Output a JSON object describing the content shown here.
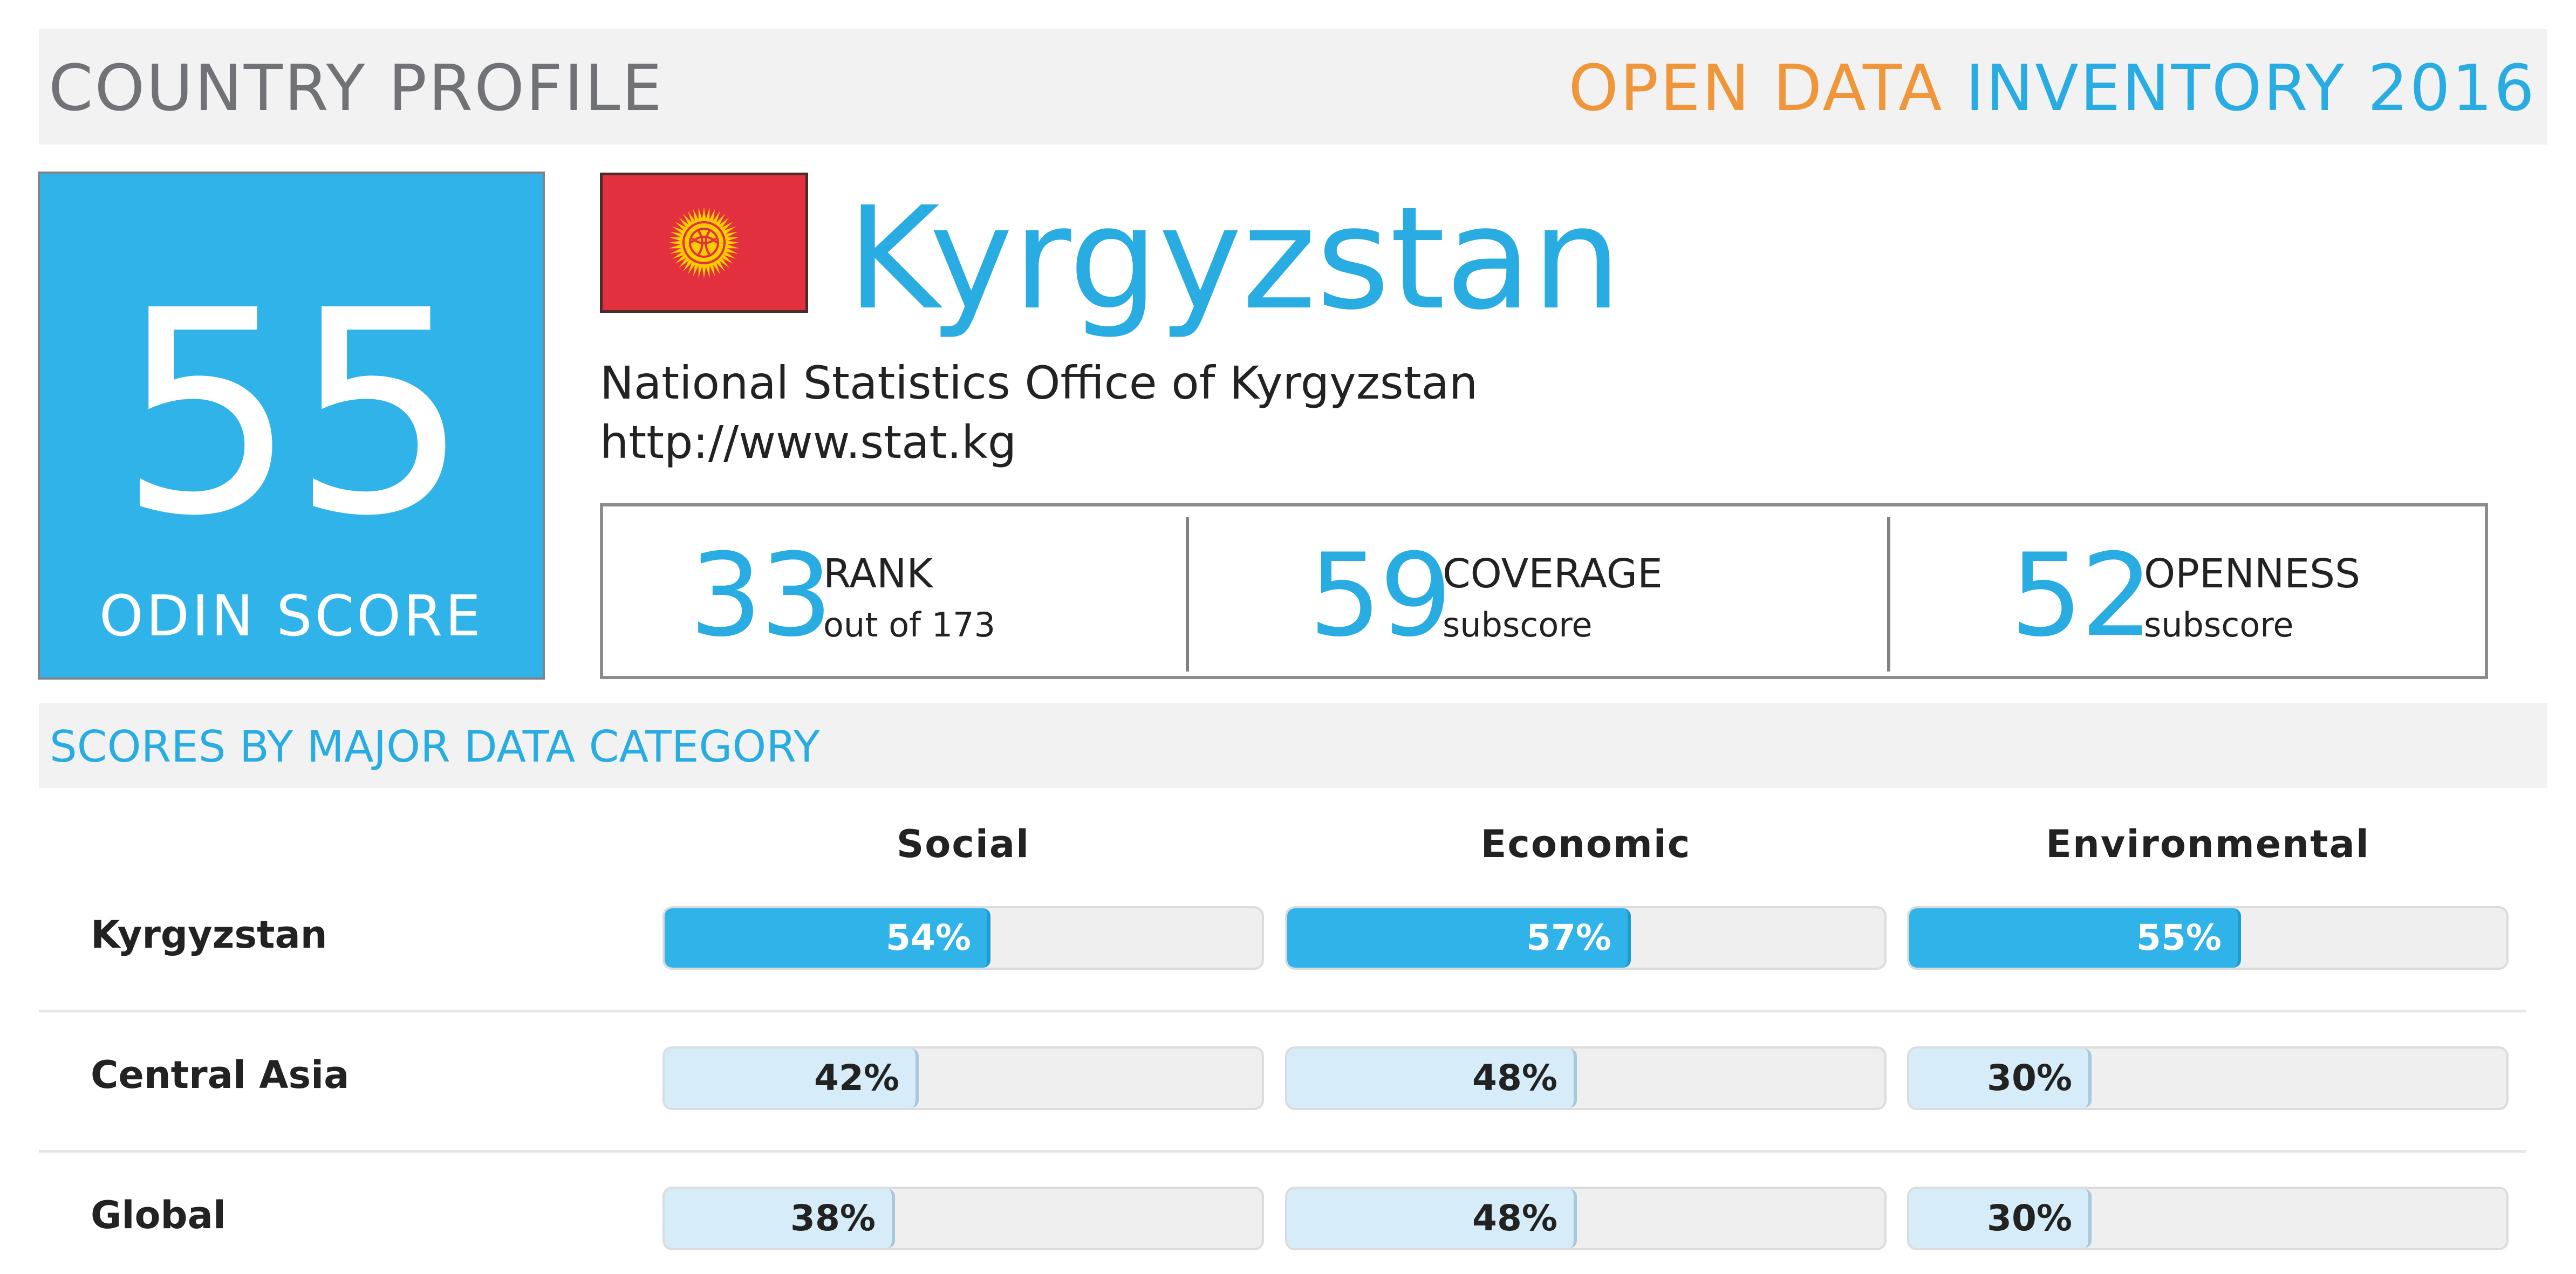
{
  "header": {
    "left_title": "COUNTRY PROFILE",
    "right_title_part1": "OPEN DATA",
    "right_title_part2": "INVENTORY 2016"
  },
  "score": {
    "value": "55",
    "label": "ODIN SCORE"
  },
  "country": {
    "name": "Kyrgyzstan",
    "office": "National Statistics Office of Kyrgyzstan",
    "url": "http://www.stat.kg",
    "flag_icon": "kyrgyzstan-flag-icon"
  },
  "stats": [
    {
      "value": "33",
      "label": "RANK",
      "sub": "out of 173"
    },
    {
      "value": "59",
      "label": "COVERAGE",
      "sub": "subscore"
    },
    {
      "value": "52",
      "label": "OPENNESS",
      "sub": "subscore"
    }
  ],
  "section": {
    "title": "SCORES BY MAJOR DATA CATEGORY"
  },
  "chart_data": {
    "type": "bar",
    "categories": [
      "Social",
      "Economic",
      "Environmental"
    ],
    "series": [
      {
        "name": "Kyrgyzstan",
        "values": [
          54,
          57,
          55
        ],
        "labels": [
          "54%",
          "57%",
          "55%"
        ]
      },
      {
        "name": "Central Asia",
        "values": [
          42,
          48,
          30
        ],
        "labels": [
          "42%",
          "48%",
          "30%"
        ]
      },
      {
        "name": "Global",
        "values": [
          38,
          48,
          30
        ],
        "labels": [
          "38%",
          "48%",
          "30%"
        ]
      }
    ],
    "ylim": [
      0,
      100
    ]
  },
  "colors": {
    "accent": "#2fb3e8",
    "orange": "#f0963a",
    "light_bar": "#d6ecf8",
    "flag_red": "#e3303f",
    "flag_sun": "#ffcc00"
  }
}
